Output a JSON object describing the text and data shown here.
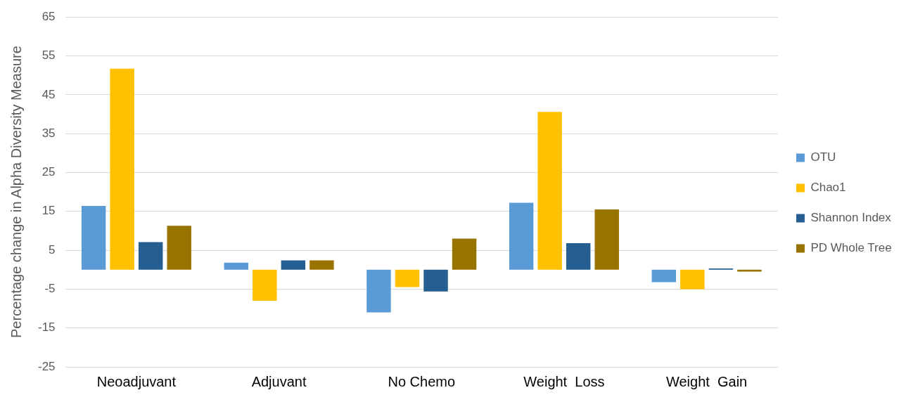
{
  "chart_data": {
    "type": "bar",
    "ylabel": "Percentage change in Alpha Diversity Measure",
    "categories": [
      "Neoadjuvant",
      "Adjuvant",
      "No Chemo",
      "Weight  Loss",
      "Weight  Gain"
    ],
    "series": [
      {
        "name": "OTU",
        "color": "#5b9bd5",
        "values": [
          16.4,
          1.8,
          -11.0,
          17.2,
          -3.2
        ]
      },
      {
        "name": "Chao1",
        "color": "#ffc000",
        "values": [
          51.7,
          -8.0,
          -4.5,
          40.6,
          -5.0
        ]
      },
      {
        "name": "Shannon Index",
        "color": "#255e91",
        "values": [
          7.1,
          2.4,
          -5.6,
          6.8,
          0.3
        ]
      },
      {
        "name": "PD Whole Tree",
        "color": "#997300",
        "values": [
          11.3,
          2.4,
          8.0,
          15.5,
          -0.5
        ]
      }
    ],
    "ylim": [
      -25,
      65
    ],
    "yticks": [
      -25,
      -15,
      -5,
      5,
      15,
      25,
      35,
      45,
      55,
      65
    ],
    "grid": "y",
    "legend": "right"
  }
}
